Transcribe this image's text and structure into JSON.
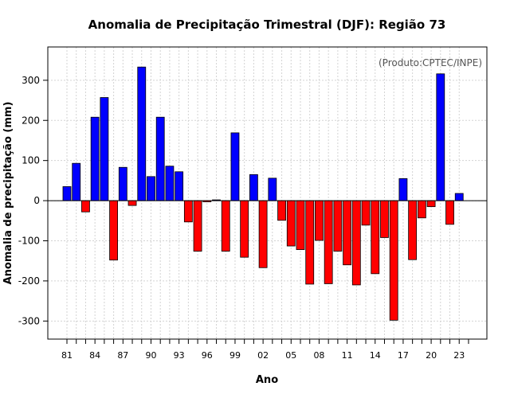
{
  "chart_data": {
    "type": "bar",
    "title": "Anomalia de Precipitação Trimestral (DJF): Região 73",
    "xlabel": "Ano",
    "ylabel": "Anomalia de precipitação (mm)",
    "annotation": "(Produto:CPTEC/INPE)",
    "ylim": [
      -345,
      383
    ],
    "yticks": [
      -300,
      -200,
      -100,
      0,
      100,
      200,
      300
    ],
    "x_tick_labels": [
      "81",
      "84",
      "87",
      "90",
      "93",
      "96",
      "99",
      "02",
      "05",
      "08",
      "11",
      "14",
      "17",
      "20",
      "23"
    ],
    "x_tick_years": [
      1981,
      1984,
      1987,
      1990,
      1993,
      1996,
      1999,
      2002,
      2005,
      2008,
      2011,
      2014,
      2017,
      2020,
      2023
    ],
    "grid": true,
    "colors": {
      "positive": "#0000ff",
      "negative": "#ff0000",
      "grid": "#d3d3d3"
    },
    "years": [
      1981,
      1982,
      1983,
      1984,
      1985,
      1986,
      1987,
      1988,
      1989,
      1990,
      1991,
      1992,
      1993,
      1994,
      1995,
      1996,
      1997,
      1998,
      1999,
      2000,
      2001,
      2002,
      2003,
      2004,
      2005,
      2006,
      2007,
      2008,
      2009,
      2010,
      2011,
      2012,
      2013,
      2014,
      2015,
      2016,
      2017,
      2018,
      2019,
      2020,
      2021,
      2022,
      2023
    ],
    "values": [
      35,
      93,
      -28,
      208,
      257,
      -148,
      83,
      -12,
      333,
      60,
      208,
      86,
      72,
      -53,
      -126,
      -3,
      2,
      -126,
      169,
      -141,
      65,
      -167,
      56,
      -49,
      -113,
      -122,
      -208,
      -99,
      -207,
      -126,
      -160,
      -210,
      -61,
      -182,
      -92,
      -298,
      55,
      -147,
      -43,
      -15,
      316,
      -59,
      18
    ]
  }
}
